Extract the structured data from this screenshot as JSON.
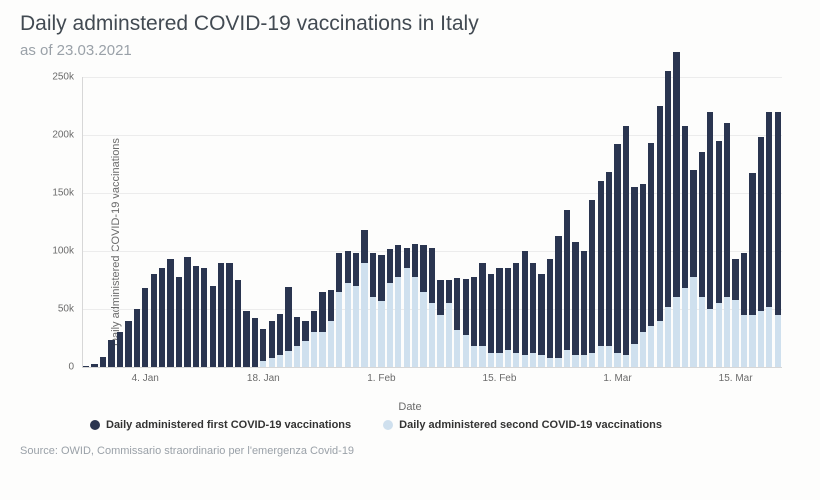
{
  "title": "Daily adminstered COVID-19 vaccinations in Italy",
  "subtitle": "as of 23.03.2021",
  "source": "Source: OWID, Commissario straordinario per l'emergenza Covid-19",
  "chart": {
    "type": "stacked-bar",
    "ylabel": "Daily administered COVID-19 vaccinations",
    "xlabel": "Date",
    "ylim": [
      0,
      250000
    ],
    "ytick_step": 50000,
    "ytick_labels": [
      "0",
      "50k",
      "100k",
      "150k",
      "200k",
      "250k"
    ],
    "xtick_labels": [
      "4. Jan",
      "18. Jan",
      "1. Feb",
      "15. Feb",
      "1. Mar",
      "15. Mar"
    ],
    "xtick_indices": [
      7,
      21,
      35,
      49,
      63,
      77
    ],
    "grid_color": "#ececec",
    "axis_color": "#d7d7d7",
    "background_color": "#fdfdfc",
    "bar_gap_ratio": 0.25,
    "series": [
      {
        "name": "Daily administered first COVID-19 vaccinations",
        "color": "#2a3550"
      },
      {
        "name": "Daily administered second COVID-19 vaccinations",
        "color": "#cfe0ee"
      }
    ],
    "first": [
      1000,
      3000,
      9000,
      23000,
      30000,
      40000,
      50000,
      68000,
      80000,
      85000,
      93000,
      78000,
      95000,
      87000,
      85000,
      70000,
      90000,
      90000,
      75000,
      48000,
      42000,
      28000,
      32000,
      36000,
      55000,
      25000,
      18000,
      18000,
      35000,
      26000,
      33000,
      28000,
      28000,
      28000,
      38000,
      40000,
      30000,
      27000,
      18000,
      28000,
      40000,
      48000,
      30000,
      20000,
      45000,
      48000,
      60000,
      72000,
      68000,
      73000,
      70000,
      78000,
      90000,
      78000,
      70000,
      85000,
      105000,
      120000,
      98000,
      90000,
      132000,
      142000,
      150000,
      180000,
      198000,
      135000,
      128000,
      158000,
      185000,
      203000,
      212000,
      140000,
      92000,
      125000,
      170000,
      140000,
      150000,
      35000,
      53000,
      122000,
      150000,
      168000,
      175000
    ],
    "second": [
      0,
      0,
      0,
      0,
      0,
      0,
      0,
      0,
      0,
      0,
      0,
      0,
      0,
      0,
      0,
      0,
      0,
      0,
      0,
      0,
      0,
      5000,
      8000,
      10000,
      14000,
      18000,
      22000,
      30000,
      30000,
      40000,
      65000,
      72000,
      70000,
      90000,
      60000,
      57000,
      72000,
      78000,
      85000,
      78000,
      65000,
      55000,
      45000,
      55000,
      32000,
      28000,
      18000,
      18000,
      12000,
      12000,
      15000,
      12000,
      10000,
      12000,
      10000,
      8000,
      8000,
      15000,
      10000,
      10000,
      12000,
      18000,
      18000,
      12000,
      10000,
      20000,
      30000,
      35000,
      40000,
      52000,
      60000,
      68000,
      78000,
      60000,
      50000,
      55000,
      60000,
      58000,
      45000,
      45000,
      48000,
      52000,
      45000
    ]
  }
}
